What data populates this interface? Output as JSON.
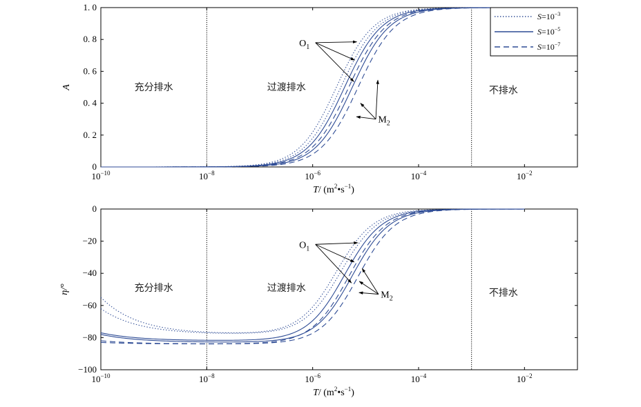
{
  "chart_data": [
    {
      "type": "line",
      "xscale": "log",
      "xlim": [
        1e-10,
        0.1
      ],
      "ylim": [
        0,
        1.0
      ],
      "xticks": [
        1e-10,
        1e-08,
        1e-06,
        0.0001,
        0.01
      ],
      "xtick_labels": [
        {
          "base": "10",
          "exp": "−10"
        },
        {
          "base": "10",
          "exp": "−8"
        },
        {
          "base": "10",
          "exp": "−6"
        },
        {
          "base": "10",
          "exp": "−4"
        },
        {
          "base": "10",
          "exp": "−2"
        }
      ],
      "yticks": [
        0,
        0.2,
        0.4,
        0.6,
        0.8,
        1.0
      ],
      "ytick_labels": [
        "0",
        "0. 2",
        "0. 4",
        "0. 6",
        "0. 8",
        "1. 0"
      ],
      "ylabel": "A",
      "xlabel": {
        "var": "T",
        "rest": "/ (m",
        "sup1": "2",
        "mid": "•s",
        "sup2": "−1",
        "end": ")"
      },
      "zone_lines": [
        1e-08,
        0.001
      ],
      "zones": [
        {
          "label": "充分排水",
          "x": 1e-09,
          "y": 0.48
        },
        {
          "label": "过渡排水",
          "x": 3.2e-07,
          "y": 0.48
        },
        {
          "label": "不排水",
          "x": 0.004,
          "y": 0.46
        }
      ],
      "series": [
        {
          "style": "dotted",
          "curves": [
            {
              "x0": 2.8e-06,
              "w": 0.95
            },
            {
              "x0": 3.4e-06,
              "w": 0.95
            }
          ]
        },
        {
          "style": "solid",
          "curves": [
            {
              "x0": 4e-06,
              "w": 0.95
            },
            {
              "x0": 5.6e-06,
              "w": 0.95
            }
          ]
        },
        {
          "style": "dashed",
          "curves": [
            {
              "x0": 4.8e-06,
              "w": 0.95
            },
            {
              "x0": 7.2e-06,
              "w": 0.95
            }
          ]
        }
      ],
      "annotations": [
        {
          "label": "O",
          "sub": "1",
          "x": 1e-06,
          "y": 0.78,
          "targets": [
            [
              6.8e-06,
              0.785
            ],
            [
              6.2e-06,
              0.67
            ],
            [
              6e-06,
              0.535
            ]
          ]
        },
        {
          "label": "M",
          "sub": "2",
          "x": 3.2e-05,
          "y": 0.3,
          "targets": [
            [
              1.7e-05,
              0.545
            ],
            [
              8e-06,
              0.4
            ],
            [
              6.7e-06,
              0.315
            ]
          ]
        }
      ],
      "legend": {
        "placement": "top-right",
        "entries": [
          {
            "style": "dotted",
            "base": "S=10",
            "exp": "−3"
          },
          {
            "style": "solid",
            "base": "S=10",
            "exp": "−5"
          },
          {
            "style": "dashed",
            "base": "S=10",
            "exp": "−7"
          }
        ]
      }
    },
    {
      "type": "line",
      "xscale": "log",
      "xlim": [
        1e-10,
        0.1
      ],
      "ylim": [
        -100,
        0
      ],
      "xticks": [
        1e-10,
        1e-08,
        1e-06,
        0.0001,
        0.01
      ],
      "xtick_labels": [
        {
          "base": "10",
          "exp": "−10"
        },
        {
          "base": "10",
          "exp": "−8"
        },
        {
          "base": "10",
          "exp": "−6"
        },
        {
          "base": "10",
          "exp": "−4"
        },
        {
          "base": "10",
          "exp": "−2"
        }
      ],
      "yticks": [
        -100,
        -80,
        -60,
        -40,
        -20,
        0
      ],
      "ytick_labels": [
        "−100",
        "−80",
        "−60",
        "−40",
        "−20",
        "0"
      ],
      "ylabel": "η/°",
      "xlabel": {
        "var": "T",
        "rest": "/ (m",
        "sup1": "2",
        "mid": "•s",
        "sup2": "−1",
        "end": ")"
      },
      "zone_lines": [
        1e-08,
        0.001
      ],
      "zones": [
        {
          "label": "充分排水",
          "x": 1e-09,
          "y": -51
        },
        {
          "label": "过渡排水",
          "x": 3.2e-07,
          "y": -51
        },
        {
          "label": "不排水",
          "x": 0.004,
          "y": -54
        }
      ],
      "series": [
        {
          "style": "dotted",
          "curves": [
            {
              "x0": 2.8e-06,
              "w": 0.95,
              "start": -55,
              "min": -78
            },
            {
              "x0": 3.4e-06,
              "w": 0.95,
              "start": -62,
              "min": -78
            }
          ]
        },
        {
          "style": "solid",
          "curves": [
            {
              "x0": 4e-06,
              "w": 0.95,
              "start": -77,
              "min": -82
            },
            {
              "x0": 5.6e-06,
              "w": 0.95,
              "start": -78,
              "min": -83
            }
          ]
        },
        {
          "style": "dashed",
          "curves": [
            {
              "x0": 4.8e-06,
              "w": 0.95,
              "start": -82,
              "min": -84
            },
            {
              "x0": 7.2e-06,
              "w": 0.95,
              "start": -83,
              "min": -84
            }
          ]
        }
      ],
      "annotations": [
        {
          "label": "O",
          "sub": "1",
          "x": 1e-06,
          "y": -22,
          "targets": [
            [
              7.1e-06,
              -21
            ],
            [
              6.1e-06,
              -33
            ],
            [
              5.4e-06,
              -46
            ]
          ]
        },
        {
          "label": "M",
          "sub": "2",
          "x": 3.6e-05,
          "y": -53,
          "targets": [
            [
              8.6e-06,
              -37
            ],
            [
              7.6e-06,
              -45
            ],
            [
              7.5e-06,
              -52
            ]
          ]
        }
      ]
    }
  ]
}
